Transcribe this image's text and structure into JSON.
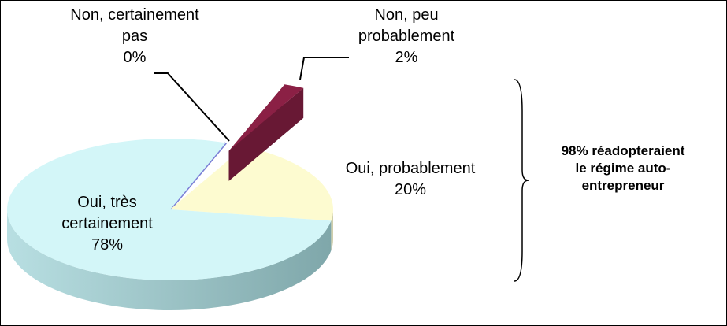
{
  "chart_data": {
    "type": "pie",
    "categories": [
      "Non, certainement pas",
      "Non, peu probablement",
      "Oui, probablement",
      "Oui, très certainement"
    ],
    "values": [
      0,
      2,
      20,
      78
    ],
    "value_labels": [
      "0%",
      "2%",
      "20%",
      "78%"
    ],
    "colors": [
      "#7b7fd6",
      "#8b2045",
      "#fdfbd0",
      "#d3f6f8"
    ],
    "annotation": "98% réadopteraient le régime auto-entrepreneur"
  }
}
